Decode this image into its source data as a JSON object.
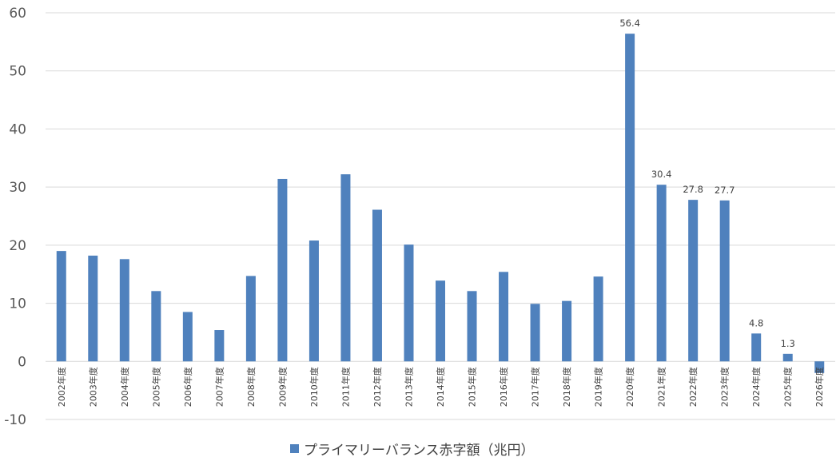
{
  "chart_data": {
    "type": "bar",
    "categories": [
      "2002年度",
      "2003年度",
      "2004年度",
      "2005年度",
      "2006年度",
      "2007年度",
      "2008年度",
      "2009年度",
      "2010年度",
      "2011年度",
      "2012年度",
      "2013年度",
      "2014年度",
      "2015年度",
      "2016年度",
      "2017年度",
      "2018年度",
      "2019年度",
      "2020年度",
      "2021年度",
      "2022年度",
      "2023年度",
      "2024年度",
      "2025年度",
      "2026年度"
    ],
    "series": [
      {
        "name": "プライマリーバランス赤字額（兆円）",
        "color": "#4f81bd",
        "values": [
          19.0,
          18.2,
          17.6,
          12.1,
          8.5,
          5.4,
          14.7,
          31.4,
          20.8,
          32.2,
          26.1,
          20.1,
          13.9,
          12.1,
          15.4,
          9.9,
          10.4,
          14.6,
          56.4,
          30.4,
          27.8,
          27.7,
          4.8,
          1.3,
          -2.0
        ],
        "data_labels": [
          null,
          null,
          null,
          null,
          null,
          null,
          null,
          null,
          null,
          null,
          null,
          null,
          null,
          null,
          null,
          null,
          null,
          null,
          "56.4",
          "30.4",
          "27.8",
          "27.7",
          "4.8",
          "1.3",
          null
        ]
      }
    ],
    "title": "",
    "xlabel": "",
    "ylabel": "",
    "ylim": [
      -10,
      60
    ],
    "yticks": [
      "60",
      "50",
      "40",
      "30",
      "20",
      "10",
      "0",
      "-10"
    ],
    "ytick_values": [
      60,
      50,
      40,
      30,
      20,
      10,
      0,
      -10
    ],
    "grid": true,
    "legend_position": "bottom",
    "legend_entry": "プライマリーバランス赤字額（兆円）"
  }
}
